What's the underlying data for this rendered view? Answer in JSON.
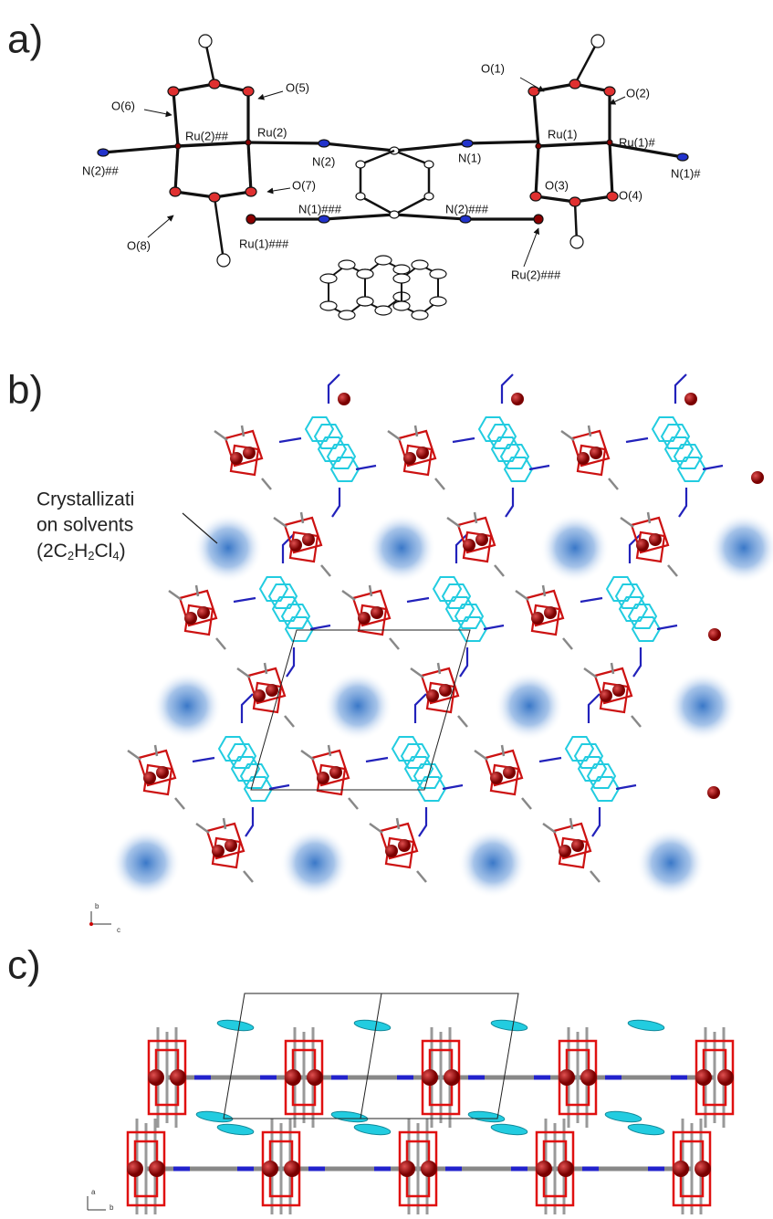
{
  "panels": {
    "a": {
      "label": "a)",
      "atoms": [
        "O(6)",
        "O(5)",
        "Ru(2)##",
        "Ru(2)",
        "N(2)##",
        "N(2)",
        "N(1)",
        "O(1)",
        "O(2)",
        "Ru(1)",
        "Ru(1)#",
        "N(1)#",
        "O(3)",
        "O(4)",
        "O(7)",
        "O(8)",
        "N(1)###",
        "Ru(1)###",
        "N(2)###",
        "Ru(2)###"
      ]
    },
    "b": {
      "label": "b)",
      "annotation": {
        "lines": [
          "Crystallizati",
          "on solvents"
        ],
        "formula": [
          {
            "text": "(2C"
          },
          {
            "text": "2",
            "sub": true
          },
          {
            "text": "H"
          },
          {
            "text": "2",
            "sub": true
          },
          {
            "text": "Cl"
          },
          {
            "text": "4",
            "sub": true
          },
          {
            "text": ")"
          }
        ]
      },
      "axes": [
        "b",
        "c"
      ]
    },
    "c": {
      "label": "c)",
      "axes": [
        "a",
        "b"
      ]
    }
  }
}
